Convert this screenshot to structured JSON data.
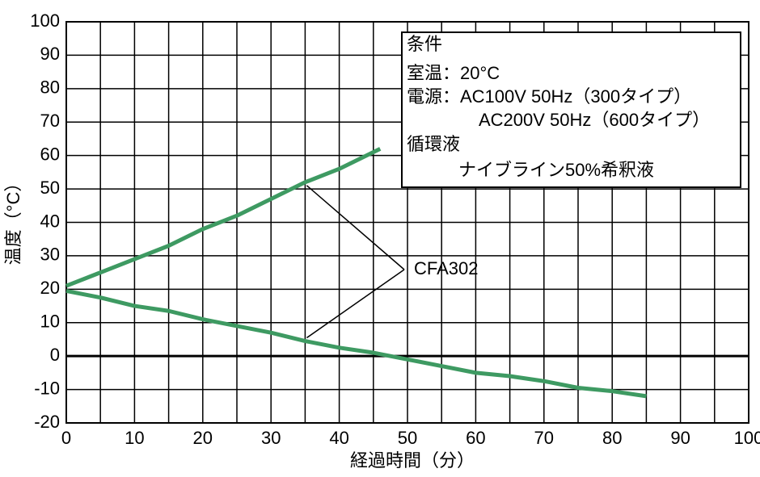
{
  "chart_data": {
    "type": "line",
    "xlabel": "経過時間（分）",
    "ylabel": "温度（°C）",
    "xlim": [
      0,
      100
    ],
    "xticks": [
      0,
      10,
      20,
      30,
      40,
      50,
      60,
      70,
      80,
      90,
      100
    ],
    "xminor": [
      5,
      15,
      25,
      35,
      45,
      55,
      65,
      75,
      85,
      95
    ],
    "ylim": [
      -20,
      100
    ],
    "yticks": [
      -20,
      -10,
      0,
      10,
      20,
      30,
      40,
      50,
      60,
      70,
      80,
      90,
      100
    ],
    "grid": true,
    "series": [
      {
        "color": "#3e9a62",
        "x": [
          0,
          5,
          10,
          15,
          20,
          25,
          30,
          35,
          40,
          45,
          46
        ],
        "values": [
          21,
          25,
          29,
          33,
          38,
          42,
          47,
          52,
          56,
          61,
          62
        ]
      },
      {
        "color": "#3e9a62",
        "x": [
          0,
          5,
          10,
          15,
          20,
          25,
          30,
          35,
          40,
          45,
          50,
          55,
          60,
          65,
          70,
          75,
          80,
          85
        ],
        "values": [
          19.5,
          17.5,
          15,
          13.5,
          11,
          9,
          7,
          4.5,
          2.5,
          1,
          -1,
          -3,
          -5,
          -6,
          -7.5,
          -9.5,
          -10.5,
          -12
        ]
      }
    ],
    "annotation": "CFA302",
    "conditions": [
      "条件",
      "室温：20°C",
      "電源：AC100V 50Hz（300タイプ）",
      "AC200V 50Hz（600タイプ）",
      "循環液",
      "ナイブライン50%希釈液"
    ]
  }
}
